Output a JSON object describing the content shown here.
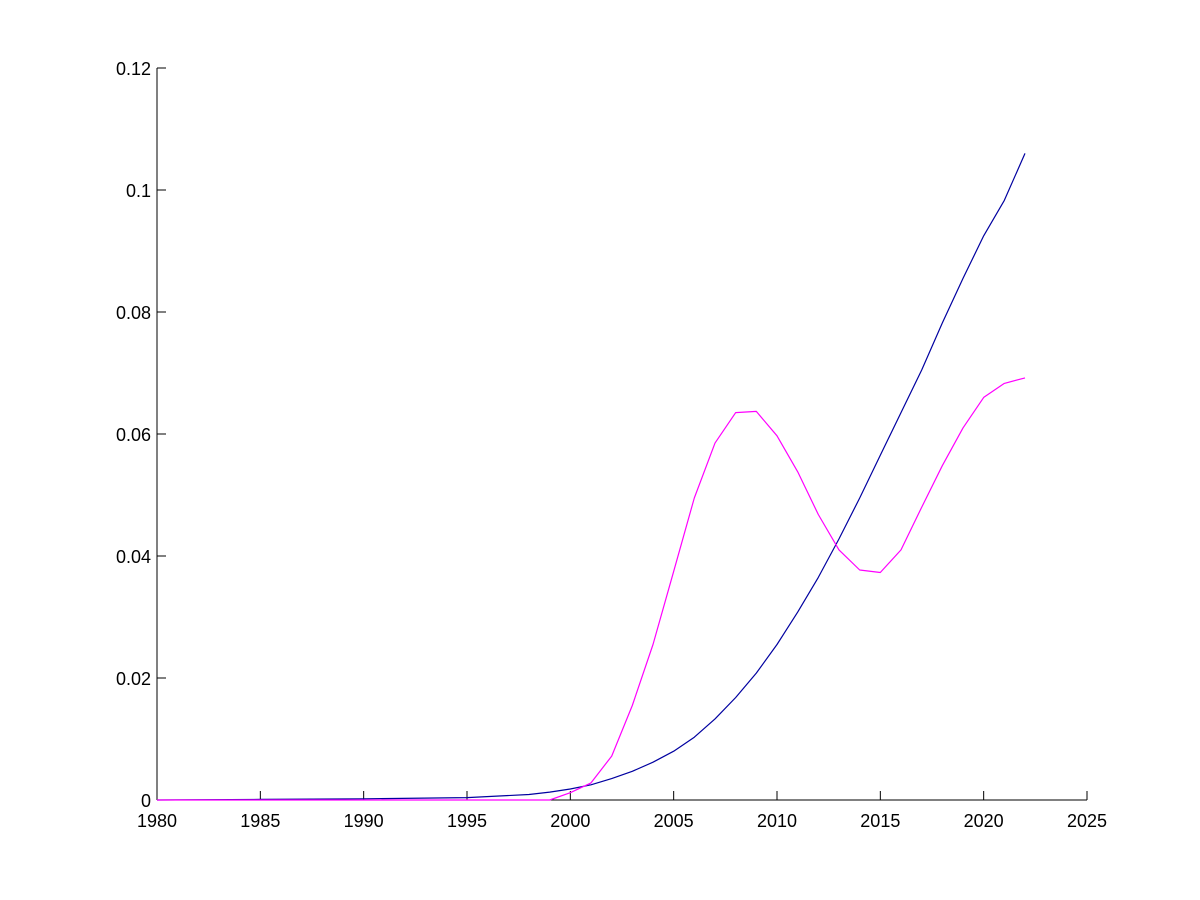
{
  "chart_data": {
    "type": "line",
    "title": "",
    "xlabel": "",
    "ylabel": "",
    "xlim": [
      1980,
      2025
    ],
    "ylim": [
      0,
      0.12
    ],
    "grid": false,
    "x_ticks": [
      1980,
      1985,
      1990,
      1995,
      2000,
      2005,
      2010,
      2015,
      2020,
      2025
    ],
    "x_tick_labels": [
      "1980",
      "1985",
      "1990",
      "1995",
      "2000",
      "2005",
      "2010",
      "2015",
      "2020",
      "2025"
    ],
    "y_ticks": [
      0,
      0.02,
      0.04,
      0.06,
      0.08,
      0.1,
      0.12
    ],
    "y_tick_labels": [
      "0",
      "0.02",
      "0.04",
      "0.06",
      "0.08",
      "0.1",
      "0.12"
    ],
    "series": [
      {
        "color": "#0000a0",
        "x": [
          1980,
          1985,
          1990,
          1995,
          1998,
          1999,
          2000,
          2001,
          2002,
          2003,
          2004,
          2005,
          2006,
          2007,
          2008,
          2009,
          2010,
          2011,
          2012,
          2013,
          2014,
          2015,
          2016,
          2017,
          2018,
          2019,
          2020,
          2021,
          2022
        ],
        "y": [
          0,
          0.0001,
          0.0002,
          0.0004,
          0.0009,
          0.0013,
          0.0018,
          0.0025,
          0.0035,
          0.0047,
          0.0062,
          0.008,
          0.0103,
          0.0133,
          0.0168,
          0.0208,
          0.0255,
          0.0308,
          0.0365,
          0.0428,
          0.0495,
          0.0565,
          0.0635,
          0.0705,
          0.0782,
          0.0855,
          0.0925,
          0.0983,
          0.106
        ]
      },
      {
        "color": "#ff00ff",
        "x": [
          1980,
          1986,
          1995,
          1999,
          2000,
          2001,
          2002,
          2003,
          2004,
          2005,
          2006,
          2007,
          2008,
          2009,
          2010,
          2011,
          2012,
          2013,
          2014,
          2015,
          2016,
          2017,
          2018,
          2019,
          2020,
          2021,
          2022
        ],
        "y": [
          0,
          0,
          0,
          0,
          0.0012,
          0.0028,
          0.0072,
          0.0155,
          0.0255,
          0.0375,
          0.0495,
          0.0585,
          0.0635,
          0.0637,
          0.0597,
          0.0538,
          0.0468,
          0.041,
          0.0377,
          0.0373,
          0.041,
          0.048,
          0.0548,
          0.061,
          0.066,
          0.0683,
          0.0692
        ]
      }
    ]
  }
}
